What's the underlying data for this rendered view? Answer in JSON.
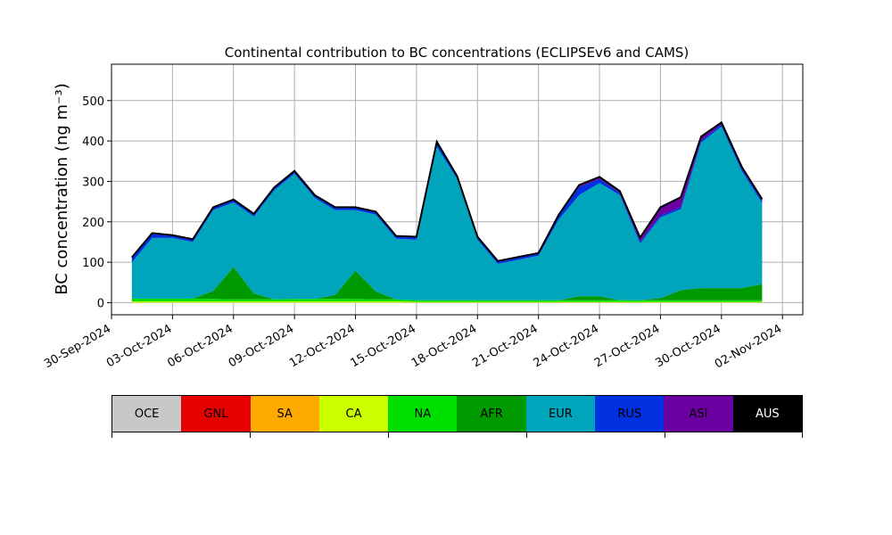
{
  "chart_data": {
    "type": "area",
    "stacked": true,
    "title": "Continental contribution to BC concentrations (ECLIPSEv6 and CAMS)",
    "ylabel": "BC concentration (ng m⁻³)",
    "xlabel": "",
    "x_range": [
      "2024-09-30",
      "2024-11-03"
    ],
    "ylim": [
      -30,
      590
    ],
    "yticks": [
      0,
      100,
      200,
      300,
      400,
      500
    ],
    "xticks": [
      "30-Sep-2024",
      "03-Oct-2024",
      "06-Oct-2024",
      "09-Oct-2024",
      "12-Oct-2024",
      "15-Oct-2024",
      "18-Oct-2024",
      "21-Oct-2024",
      "24-Oct-2024",
      "27-Oct-2024",
      "30-Oct-2024",
      "02-Nov-2024"
    ],
    "grid": true,
    "x": [
      "2024-10-01",
      "2024-10-02",
      "2024-10-03",
      "2024-10-04",
      "2024-10-05",
      "2024-10-06",
      "2024-10-07",
      "2024-10-08",
      "2024-10-09",
      "2024-10-10",
      "2024-10-11",
      "2024-10-12",
      "2024-10-13",
      "2024-10-14",
      "2024-10-15",
      "2024-10-16",
      "2024-10-17",
      "2024-10-18",
      "2024-10-19",
      "2024-10-20",
      "2024-10-21",
      "2024-10-22",
      "2024-10-23",
      "2024-10-24",
      "2024-10-25",
      "2024-10-26",
      "2024-10-27",
      "2024-10-28",
      "2024-10-29",
      "2024-10-30",
      "2024-10-31",
      "2024-11-01"
    ],
    "series": [
      {
        "name": "OCE",
        "color": "#c8c8c8",
        "values": [
          0,
          0,
          0,
          0,
          0,
          0,
          0,
          0,
          0,
          0,
          0,
          0,
          0,
          0,
          0,
          0,
          0,
          0,
          0,
          0,
          0,
          0,
          0,
          0,
          0,
          0,
          0,
          0,
          0,
          0,
          0,
          0
        ]
      },
      {
        "name": "GNL",
        "color": "#e60000",
        "values": [
          0,
          0,
          0,
          0,
          0,
          0,
          0,
          0,
          0,
          0,
          0,
          0,
          0,
          0,
          0,
          0,
          0,
          0,
          0,
          0,
          0,
          0,
          0,
          0,
          0,
          0,
          0,
          0,
          0,
          0,
          0,
          0
        ]
      },
      {
        "name": "SA",
        "color": "#ffaa00",
        "values": [
          0,
          0,
          0,
          0,
          0,
          0,
          0,
          0,
          0,
          0,
          0,
          0,
          0,
          0,
          0,
          0,
          0,
          0,
          0,
          0,
          0,
          0,
          0,
          0,
          0,
          0,
          0,
          0,
          0,
          0,
          0,
          0
        ]
      },
      {
        "name": "CA",
        "color": "#ccff00",
        "values": [
          3,
          3,
          3,
          3,
          3,
          3,
          3,
          3,
          3,
          3,
          3,
          3,
          3,
          3,
          2,
          2,
          2,
          2,
          2,
          2,
          2,
          2,
          2,
          2,
          2,
          2,
          2,
          2,
          2,
          2,
          2,
          2
        ]
      },
      {
        "name": "NA",
        "color": "#00e000",
        "values": [
          7,
          7,
          7,
          7,
          6,
          5,
          5,
          5,
          6,
          6,
          6,
          6,
          5,
          5,
          4,
          4,
          4,
          4,
          4,
          4,
          4,
          4,
          4,
          4,
          4,
          4,
          4,
          4,
          4,
          4,
          4,
          4
        ]
      },
      {
        "name": "AFR",
        "color": "#009a00",
        "values": [
          0,
          0,
          0,
          0,
          20,
          80,
          15,
          0,
          0,
          0,
          10,
          70,
          20,
          0,
          0,
          0,
          0,
          0,
          0,
          0,
          0,
          0,
          10,
          10,
          0,
          0,
          5,
          25,
          30,
          30,
          30,
          40
        ]
      },
      {
        "name": "EUR",
        "color": "#00a5bc",
        "values": [
          90,
          150,
          150,
          140,
          200,
          160,
          190,
          270,
          310,
          250,
          210,
          150,
          190,
          150,
          150,
          380,
          300,
          150,
          90,
          100,
          110,
          200,
          250,
          280,
          260,
          140,
          200,
          200,
          360,
          400,
          290,
          200
        ]
      },
      {
        "name": "RUS",
        "color": "#0030e0",
        "values": [
          10,
          10,
          5,
          5,
          5,
          5,
          5,
          5,
          5,
          5,
          5,
          5,
          5,
          5,
          5,
          10,
          5,
          5,
          5,
          5,
          5,
          10,
          20,
          10,
          5,
          5,
          5,
          5,
          5,
          5,
          5,
          5
        ]
      },
      {
        "name": "ASI",
        "color": "#6a00a0",
        "values": [
          2,
          2,
          2,
          2,
          2,
          2,
          2,
          2,
          2,
          2,
          2,
          2,
          2,
          2,
          2,
          2,
          2,
          2,
          2,
          2,
          2,
          2,
          5,
          5,
          5,
          10,
          20,
          25,
          10,
          5,
          5,
          5
        ]
      },
      {
        "name": "AUS",
        "color": "#000000",
        "values": [
          0,
          0,
          0,
          0,
          0,
          0,
          0,
          0,
          0,
          0,
          0,
          0,
          0,
          0,
          0,
          0,
          0,
          0,
          0,
          0,
          0,
          0,
          0,
          0,
          0,
          0,
          0,
          0,
          0,
          0,
          0,
          0
        ]
      }
    ]
  },
  "legend": {
    "items": [
      {
        "label": "OCE",
        "color": "#c8c8c8",
        "dark": false
      },
      {
        "label": "GNL",
        "color": "#e60000",
        "dark": false
      },
      {
        "label": "SA",
        "color": "#ffaa00",
        "dark": false
      },
      {
        "label": "CA",
        "color": "#ccff00",
        "dark": false
      },
      {
        "label": "NA",
        "color": "#00e000",
        "dark": false
      },
      {
        "label": "AFR",
        "color": "#009a00",
        "dark": false
      },
      {
        "label": "EUR",
        "color": "#00a5bc",
        "dark": false
      },
      {
        "label": "RUS",
        "color": "#0030e0",
        "dark": false
      },
      {
        "label": "ASI",
        "color": "#6a00a0",
        "dark": false
      },
      {
        "label": "AUS",
        "color": "#000000",
        "dark": true
      }
    ]
  }
}
